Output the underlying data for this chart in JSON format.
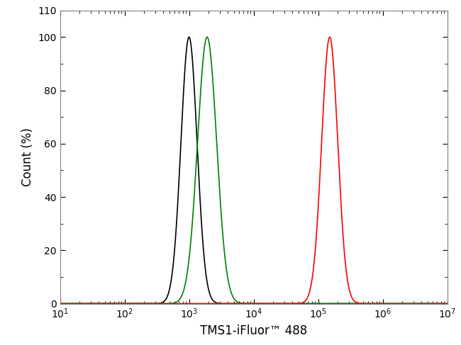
{
  "title": "",
  "xlabel": "TMS1-iFluor™ 488",
  "ylabel": "Count (%)",
  "xlim_log": [
    1,
    7
  ],
  "ylim": [
    0,
    110
  ],
  "yticks": [
    0,
    20,
    40,
    60,
    80,
    100,
    110
  ],
  "ytick_labels": [
    "0",
    "20",
    "40",
    "60",
    "80",
    "100",
    "110"
  ],
  "curves": [
    {
      "color": "#000000",
      "peak_x_log": 3.0,
      "sigma_log": 0.125,
      "peak_y": 100
    },
    {
      "color": "#008000",
      "peak_x_log": 3.28,
      "sigma_log": 0.148,
      "peak_y": 100
    },
    {
      "color": "#ff0000",
      "peak_x_log": 5.18,
      "sigma_log": 0.125,
      "peak_y": 100
    }
  ],
  "background_color": "#ffffff",
  "spine_color": "#808080",
  "linewidth": 1.2,
  "xlabel_fontsize": 12,
  "ylabel_fontsize": 12,
  "tick_labelsize": 10
}
